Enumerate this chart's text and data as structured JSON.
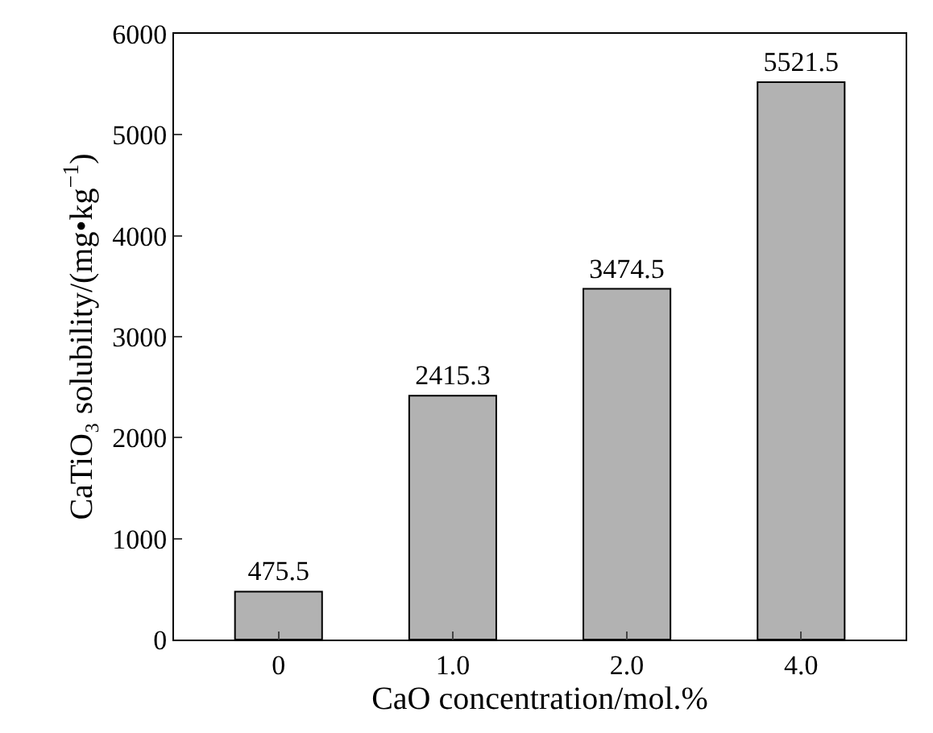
{
  "chart_data": {
    "type": "bar",
    "xlabel": "CaO concentration/mol.%",
    "ylabel": "CaTiO₃ solubility/(mg•kg$^{−1}$)",
    "categories": [
      "0",
      "1.0",
      "2.0",
      "4.0"
    ],
    "values": [
      475.5,
      2415.3,
      3474.5,
      5521.5
    ],
    "color": "#b2b2b2",
    "ylim": [
      0,
      6000
    ],
    "yticks": [
      0,
      1000,
      2000,
      3000,
      4000,
      5000,
      6000
    ],
    "data_labels": true,
    "grid": false
  }
}
